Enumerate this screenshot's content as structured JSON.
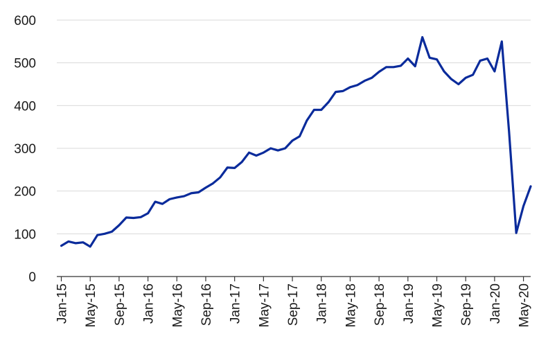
{
  "chart_data": {
    "type": "line",
    "title": "",
    "xlabel": "",
    "ylabel": "",
    "ylim": [
      0,
      600
    ],
    "yticks": [
      0,
      100,
      200,
      300,
      400,
      500,
      600
    ],
    "grid": "horizontal",
    "line_color": "#0a2b9b",
    "x": [
      "Jan-15",
      "Feb-15",
      "Mar-15",
      "Apr-15",
      "May-15",
      "Jun-15",
      "Jul-15",
      "Aug-15",
      "Sep-15",
      "Oct-15",
      "Nov-15",
      "Dec-15",
      "Jan-16",
      "Feb-16",
      "Mar-16",
      "Apr-16",
      "May-16",
      "Jun-16",
      "Jul-16",
      "Aug-16",
      "Sep-16",
      "Oct-16",
      "Nov-16",
      "Dec-16",
      "Jan-17",
      "Feb-17",
      "Mar-17",
      "Apr-17",
      "May-17",
      "Jun-17",
      "Jul-17",
      "Aug-17",
      "Sep-17",
      "Oct-17",
      "Nov-17",
      "Dec-17",
      "Jan-18",
      "Feb-18",
      "Mar-18",
      "Apr-18",
      "May-18",
      "Jun-18",
      "Jul-18",
      "Aug-18",
      "Sep-18",
      "Oct-18",
      "Nov-18",
      "Dec-18",
      "Jan-19",
      "Feb-19",
      "Mar-19",
      "Apr-19",
      "May-19",
      "Jun-19",
      "Jul-19",
      "Aug-19",
      "Sep-19",
      "Oct-19",
      "Nov-19",
      "Dec-19",
      "Jan-20",
      "Feb-20",
      "Mar-20",
      "Apr-20",
      "May-20",
      "Jun-20"
    ],
    "xtick_labels": [
      "Jan-15",
      "May-15",
      "Sep-15",
      "Jan-16",
      "May-16",
      "Sep-16",
      "Jan-17",
      "May-17",
      "Sep-17",
      "Jan-18",
      "May-18",
      "Sep-18",
      "Jan-19",
      "May-19",
      "Sep-19",
      "Jan-20",
      "May-20"
    ],
    "series": [
      {
        "values": [
          72,
          82,
          78,
          80,
          70,
          97,
          100,
          105,
          120,
          138,
          137,
          139,
          148,
          175,
          170,
          181,
          185,
          188,
          195,
          197,
          208,
          218,
          232,
          255,
          254,
          268,
          290,
          283,
          290,
          300,
          295,
          300,
          318,
          328,
          365,
          390,
          390,
          408,
          432,
          434,
          443,
          448,
          458,
          465,
          479,
          490,
          490,
          493,
          510,
          492,
          560,
          512,
          508,
          480,
          462,
          450,
          465,
          472,
          505,
          510,
          480,
          550,
          340,
          102,
          165,
          211
        ]
      }
    ]
  }
}
